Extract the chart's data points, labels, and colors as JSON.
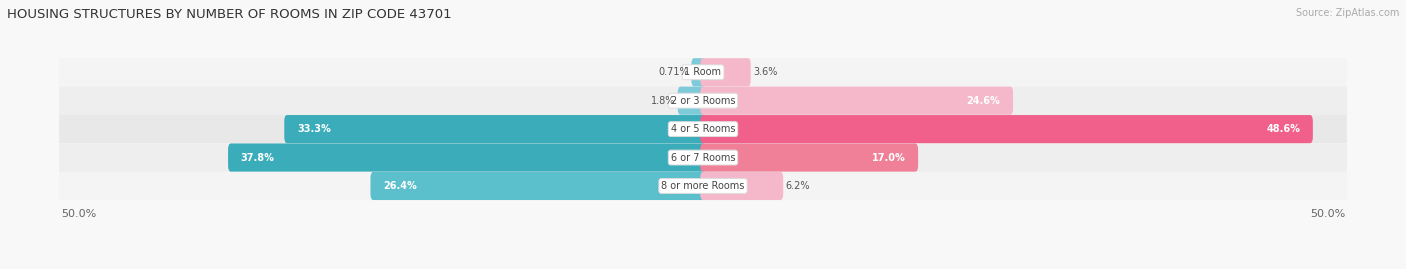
{
  "title": "HOUSING STRUCTURES BY NUMBER OF ROOMS IN ZIP CODE 43701",
  "source": "Source: ZipAtlas.com",
  "categories": [
    "1 Room",
    "2 or 3 Rooms",
    "4 or 5 Rooms",
    "6 or 7 Rooms",
    "8 or more Rooms"
  ],
  "owner_values": [
    0.71,
    1.8,
    33.3,
    37.8,
    26.4
  ],
  "renter_values": [
    3.6,
    24.6,
    48.6,
    17.0,
    6.2
  ],
  "owner_colors": [
    "#7ec8d8",
    "#7ec8d8",
    "#3aacba",
    "#3aacba",
    "#5bbccc"
  ],
  "renter_colors": [
    "#f4aec0",
    "#f4aec0",
    "#f06080",
    "#f06080",
    "#f4aec0"
  ],
  "row_bg_colors": [
    "#f2f2f2",
    "#f0f0f0",
    "#ebebeb",
    "#ebebeb",
    "#f0f0f0"
  ],
  "axis_limit": 50.0,
  "figsize": [
    14.06,
    2.69
  ],
  "dpi": 100
}
